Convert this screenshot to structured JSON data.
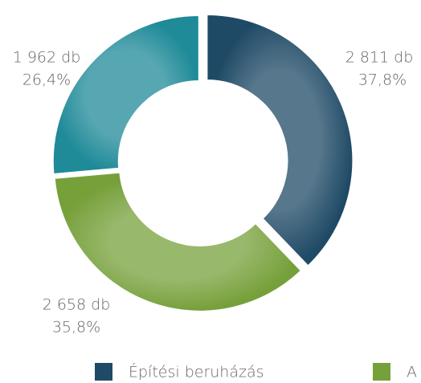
{
  "chart_data": {
    "type": "donut",
    "categories": [
      "Építési beruházás",
      "A",
      null
    ],
    "values": [
      2811,
      2658,
      1962
    ],
    "value_labels": [
      "2 811 db",
      "2 658 db",
      "1 962 db"
    ],
    "percents": [
      37.8,
      35.8,
      26.4
    ],
    "percent_labels": [
      "37,8%",
      "35,8%",
      "26,4%"
    ],
    "colors": [
      "#1f4a66",
      "#76a03a",
      "#1f8a98"
    ],
    "legend": "bottom"
  }
}
